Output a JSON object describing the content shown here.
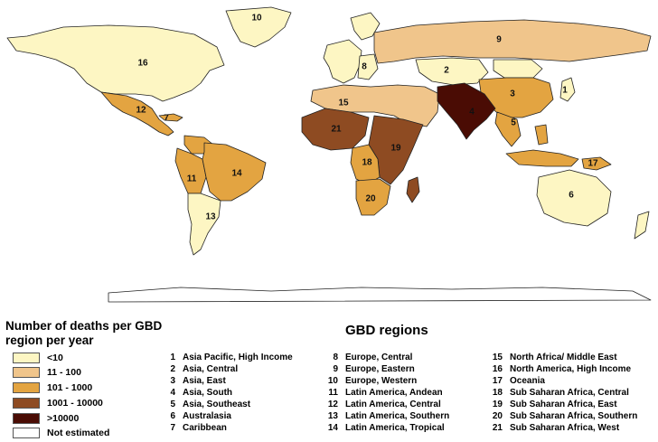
{
  "legend": {
    "title": "Number of deaths per GBD region per year",
    "items": [
      {
        "label": "<10",
        "color": "#fdf6c3"
      },
      {
        "label": "11 - 100",
        "color": "#f0c58b"
      },
      {
        "label": "101 - 1000",
        "color": "#e3a441"
      },
      {
        "label": "1001 - 10000",
        "color": "#8e4b22"
      },
      {
        "label": ">10000",
        "color": "#4a0c04"
      },
      {
        "label": "Not estimated",
        "color": "#ffffff"
      }
    ]
  },
  "gbd": {
    "title": "GBD regions",
    "regions": [
      {
        "num": "1",
        "name": "Asia Pacific, High Income"
      },
      {
        "num": "2",
        "name": "Asia, Central"
      },
      {
        "num": "3",
        "name": "Asia, East"
      },
      {
        "num": "4",
        "name": "Asia, South"
      },
      {
        "num": "5",
        "name": "Asia, Southeast"
      },
      {
        "num": "6",
        "name": "Australasia"
      },
      {
        "num": "7",
        "name": "Caribbean"
      },
      {
        "num": "8",
        "name": "Europe, Central"
      },
      {
        "num": "9",
        "name": "Europe, Eastern"
      },
      {
        "num": "10",
        "name": "Europe, Western"
      },
      {
        "num": "11",
        "name": "Latin America, Andean"
      },
      {
        "num": "12",
        "name": "Latin America, Central"
      },
      {
        "num": "13",
        "name": "Latin America, Southern"
      },
      {
        "num": "14",
        "name": "Latin America, Tropical"
      },
      {
        "num": "15",
        "name": "North Africa/ Middle East"
      },
      {
        "num": "16",
        "name": "North America, High Income"
      },
      {
        "num": "17",
        "name": "Oceania"
      },
      {
        "num": "18",
        "name": "Sub Saharan Africa, Central"
      },
      {
        "num": "19",
        "name": "Sub Saharan Africa, East"
      },
      {
        "num": "20",
        "name": "Sub Saharan Africa, Southern"
      },
      {
        "num": "21",
        "name": "Sub Saharan Africa, West"
      }
    ]
  },
  "map_labels": [
    {
      "id": "16",
      "cat": 0
    },
    {
      "id": "10",
      "cat": 0
    },
    {
      "id": "9",
      "cat": 1
    },
    {
      "id": "8",
      "cat": 0
    },
    {
      "id": "2",
      "cat": 0
    },
    {
      "id": "3",
      "cat": 2
    },
    {
      "id": "4",
      "cat": 4
    },
    {
      "id": "5",
      "cat": 2
    },
    {
      "id": "1",
      "cat": 0
    },
    {
      "id": "6",
      "cat": 0
    },
    {
      "id": "7",
      "cat": 2
    },
    {
      "id": "12",
      "cat": 2
    },
    {
      "id": "11",
      "cat": 2
    },
    {
      "id": "14",
      "cat": 2
    },
    {
      "id": "13",
      "cat": 0
    },
    {
      "id": "15",
      "cat": 1
    },
    {
      "id": "21",
      "cat": 3
    },
    {
      "id": "18",
      "cat": 2
    },
    {
      "id": "19",
      "cat": 3
    },
    {
      "id": "20",
      "cat": 2
    },
    {
      "id": "17",
      "cat": 2
    }
  ]
}
